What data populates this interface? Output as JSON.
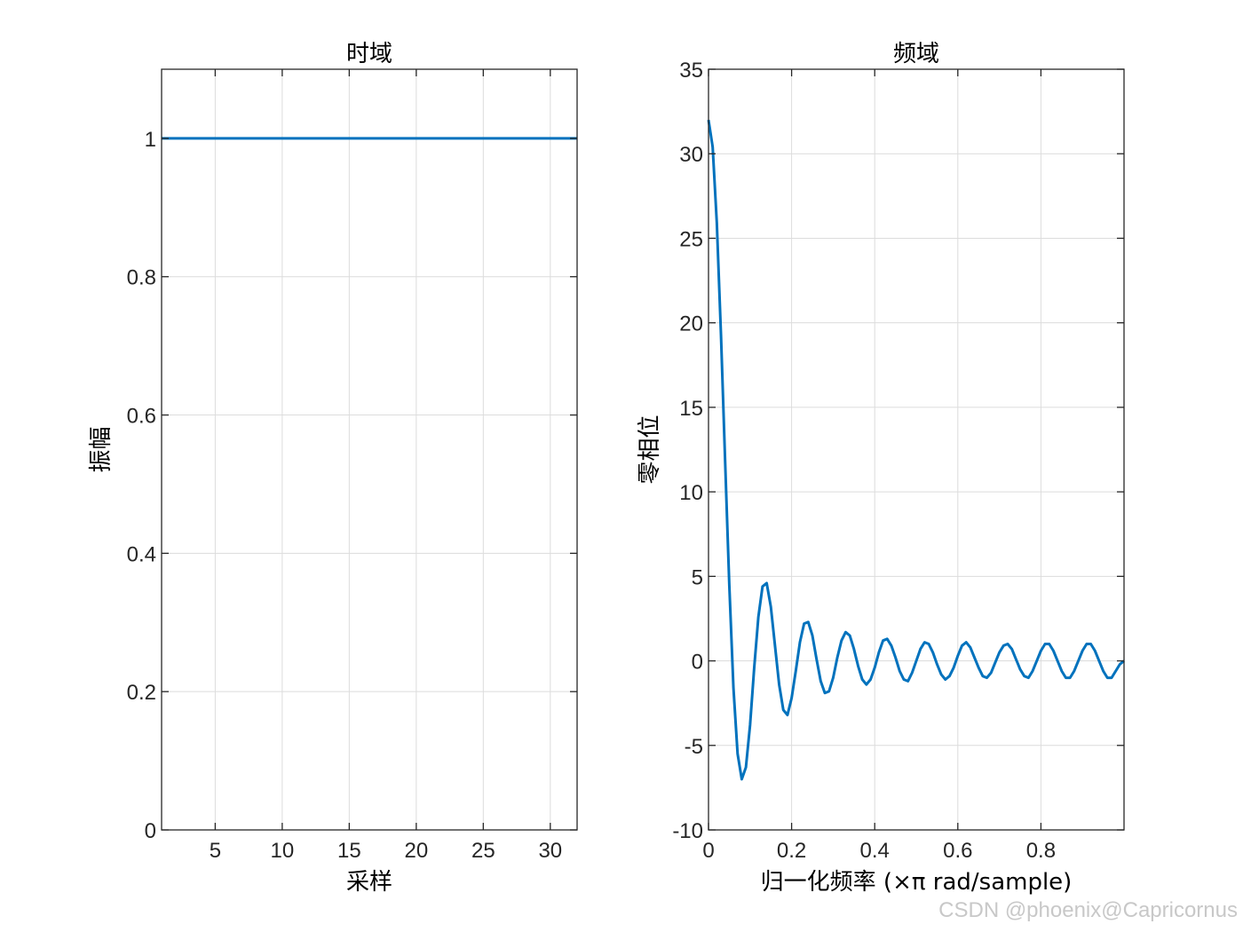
{
  "watermark": "CSDN @phoenix@Capricornus",
  "style": {
    "line_color": "#0072BD",
    "axis_color": "#262626",
    "grid_color": "#dcdcdc",
    "background": "#ffffff"
  },
  "chart_data": [
    {
      "type": "line",
      "title": "时域",
      "xlabel": "采样",
      "ylabel": "振幅",
      "xlim": [
        1,
        32
      ],
      "ylim": [
        0,
        1.1
      ],
      "xticks": [
        5,
        10,
        15,
        20,
        25,
        30
      ],
      "yticks": [
        0,
        0.2,
        0.4,
        0.6,
        0.8,
        1
      ],
      "ytick_labels": [
        "0",
        "0.2",
        "0.4",
        "0.6",
        "0.8",
        "1"
      ],
      "grid": true,
      "box": true,
      "series": [
        {
          "x": [
            1,
            32
          ],
          "y": [
            1,
            1
          ]
        }
      ]
    },
    {
      "type": "line",
      "title": "频域",
      "xlabel": "归一化频率  (×π rad/sample)",
      "ylabel": "零相位",
      "xlim": [
        0,
        1
      ],
      "ylim": [
        -10,
        35
      ],
      "xticks": [
        0,
        0.2,
        0.4,
        0.6,
        0.8
      ],
      "xtick_labels": [
        "0",
        "0.2",
        "0.4",
        "0.6",
        "0.8"
      ],
      "yticks": [
        -10,
        -5,
        0,
        5,
        10,
        15,
        20,
        25,
        30,
        35
      ],
      "grid": true,
      "box": true,
      "series": [
        {
          "x": [
            0,
            0.01,
            0.02,
            0.03,
            0.04,
            0.05,
            0.06,
            0.07,
            0.08,
            0.09,
            0.1,
            0.11,
            0.12,
            0.13,
            0.14,
            0.15,
            0.16,
            0.17,
            0.18,
            0.19,
            0.2,
            0.21,
            0.22,
            0.23,
            0.24,
            0.25,
            0.26,
            0.27,
            0.28,
            0.29,
            0.3,
            0.31,
            0.32,
            0.33,
            0.34,
            0.35,
            0.36,
            0.37,
            0.38,
            0.39,
            0.4,
            0.41,
            0.42,
            0.43,
            0.44,
            0.45,
            0.46,
            0.47,
            0.48,
            0.49,
            0.5,
            0.51,
            0.52,
            0.53,
            0.54,
            0.55,
            0.56,
            0.57,
            0.58,
            0.59,
            0.6,
            0.61,
            0.62,
            0.63,
            0.64,
            0.65,
            0.66,
            0.67,
            0.68,
            0.69,
            0.7,
            0.71,
            0.72,
            0.73,
            0.74,
            0.75,
            0.76,
            0.77,
            0.78,
            0.79,
            0.8,
            0.81,
            0.82,
            0.83,
            0.84,
            0.85,
            0.86,
            0.87,
            0.88,
            0.89,
            0.9,
            0.91,
            0.92,
            0.93,
            0.94,
            0.95,
            0.96,
            0.97,
            0.98,
            0.99,
            1.0
          ],
          "y": [
            32.0,
            30.4,
            25.9,
            19.3,
            11.8,
            4.5,
            -1.6,
            -5.5,
            -7.0,
            -6.3,
            -3.8,
            -0.4,
            2.6,
            4.4,
            4.6,
            3.2,
            0.9,
            -1.4,
            -2.9,
            -3.2,
            -2.2,
            -0.6,
            1.1,
            2.2,
            2.3,
            1.5,
            0.1,
            -1.2,
            -1.9,
            -1.8,
            -1.0,
            0.2,
            1.2,
            1.7,
            1.5,
            0.7,
            -0.3,
            -1.1,
            -1.4,
            -1.1,
            -0.4,
            0.5,
            1.2,
            1.3,
            0.9,
            0.2,
            -0.6,
            -1.1,
            -1.2,
            -0.7,
            0.0,
            0.7,
            1.1,
            1.0,
            0.5,
            -0.2,
            -0.8,
            -1.1,
            -0.9,
            -0.4,
            0.3,
            0.9,
            1.1,
            0.8,
            0.2,
            -0.4,
            -0.9,
            -1.0,
            -0.7,
            -0.1,
            0.5,
            0.9,
            1.0,
            0.7,
            0.1,
            -0.5,
            -0.9,
            -1.0,
            -0.6,
            0.0,
            0.6,
            1.0,
            1.0,
            0.6,
            0.0,
            -0.6,
            -1.0,
            -1.0,
            -0.6,
            0.0,
            0.6,
            1.0,
            1.0,
            0.6,
            0.0,
            -0.6,
            -1.0,
            -1.0,
            -0.6,
            -0.2,
            0.0
          ]
        }
      ]
    }
  ]
}
